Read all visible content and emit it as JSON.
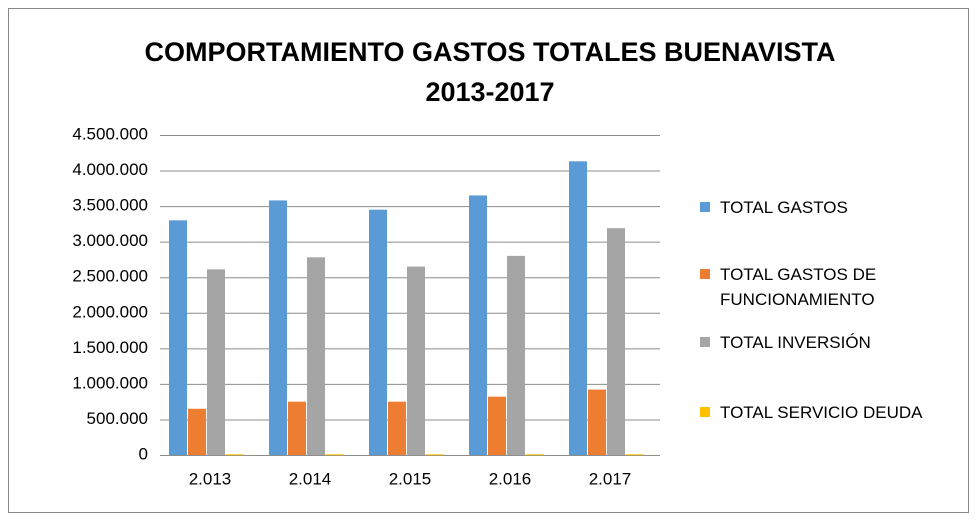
{
  "chart_data": {
    "type": "bar",
    "title": "COMPORTAMIENTO GASTOS TOTALES BUENAVISTA 2013-2017",
    "categories": [
      "2.013",
      "2.014",
      "2.015",
      "2.016",
      "2.017"
    ],
    "series": [
      {
        "name": "TOTAL GASTOS",
        "color": "#5b9bd5",
        "values": [
          3300000,
          3580000,
          3450000,
          3650000,
          4130000
        ]
      },
      {
        "name": "TOTAL GASTOS DE FUNCIONAMIENTO",
        "color": "#ed7d31",
        "values": [
          650000,
          750000,
          750000,
          820000,
          920000
        ]
      },
      {
        "name": "TOTAL INVERSIÓN",
        "color": "#a5a5a5",
        "values": [
          2610000,
          2780000,
          2650000,
          2800000,
          3190000
        ]
      },
      {
        "name": "TOTAL SERVICIO DEUDA",
        "color": "#ffc000",
        "values": [
          10000,
          10000,
          10000,
          10000,
          10000
        ]
      }
    ],
    "ylim": [
      0,
      4500000
    ],
    "yticks": [
      0,
      {
        "value": 500000,
        "label": "500.000"
      },
      {
        "value": 1000000,
        "label": "1.000.000"
      },
      {
        "value": 1500000,
        "label": "1.500.000"
      },
      {
        "value": 2000000,
        "label": "2.000.000"
      },
      {
        "value": 2500000,
        "label": "2.500.000"
      },
      {
        "value": 3000000,
        "label": "3.000.000"
      },
      {
        "value": 3500000,
        "label": "3.500.000"
      },
      {
        "value": 4000000,
        "label": "4.000.000"
      },
      {
        "value": 4500000,
        "label": "4.500.000"
      }
    ],
    "grid": true,
    "legend": "right"
  }
}
